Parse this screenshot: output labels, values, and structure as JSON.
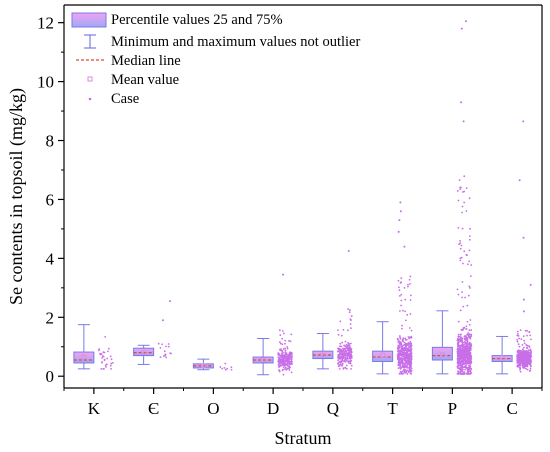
{
  "colors": {
    "box_fill_top": "#f2a3f2",
    "box_fill_bottom": "#9fa8f5",
    "box_stroke": "#7a7ae8",
    "whisker": "#7a7ae8",
    "median": "#e8433e",
    "mean": "#d98bd9",
    "case": "#c86ee8",
    "axis": "#000000"
  },
  "legend": {
    "box": "Percentile values 25 and 75%",
    "whisker": "Minimum and maximum values not outlier",
    "median": "Median line",
    "mean": "Mean value",
    "case": "Case"
  },
  "chart_data": {
    "type": "box",
    "xlabel": "Stratum",
    "ylabel": "Se contents in topsoil (mg/kg)",
    "ylim": [
      -0.4,
      12.6
    ],
    "yticks": [
      0,
      2,
      4,
      6,
      8,
      10,
      12
    ],
    "grid": false,
    "legend_position": "top-left",
    "categories": [
      "K",
      "Є",
      "O",
      "D",
      "Q",
      "T",
      "P",
      "C"
    ],
    "boxes": [
      {
        "category": "K",
        "whisker_low": 0.25,
        "q1": 0.45,
        "median": 0.55,
        "mean": 0.65,
        "q3": 0.82,
        "whisker_high": 1.75,
        "case_count": 30,
        "case_max": 1.75,
        "outliers": []
      },
      {
        "category": "Є",
        "whisker_low": 0.4,
        "q1": 0.7,
        "median": 0.8,
        "mean": 0.8,
        "q3": 0.95,
        "whisker_high": 1.05,
        "case_count": 15,
        "case_max": 1.2,
        "outliers": [
          1.9,
          2.55
        ]
      },
      {
        "category": "O",
        "whisker_low": 0.22,
        "q1": 0.28,
        "median": 0.35,
        "mean": 0.35,
        "q3": 0.42,
        "whisker_high": 0.58,
        "case_count": 8,
        "case_max": 0.6,
        "outliers": []
      },
      {
        "category": "D",
        "whisker_low": 0.05,
        "q1": 0.45,
        "median": 0.55,
        "mean": 0.55,
        "q3": 0.65,
        "whisker_high": 1.28,
        "case_count": 260,
        "case_max": 1.6,
        "outliers": [
          3.45
        ]
      },
      {
        "category": "Q",
        "whisker_low": 0.25,
        "q1": 0.6,
        "median": 0.72,
        "mean": 0.72,
        "q3": 0.85,
        "whisker_high": 1.45,
        "case_count": 240,
        "case_max": 2.3,
        "outliers": [
          4.25
        ]
      },
      {
        "category": "T",
        "whisker_low": 0.08,
        "q1": 0.5,
        "median": 0.65,
        "mean": 0.72,
        "q3": 0.85,
        "whisker_high": 1.85,
        "case_count": 460,
        "case_max": 3.5,
        "outliers": [
          4.4,
          4.9,
          5.3,
          5.6,
          5.9
        ]
      },
      {
        "category": "P",
        "whisker_low": 0.08,
        "q1": 0.55,
        "median": 0.7,
        "mean": 0.72,
        "q3": 0.98,
        "whisker_high": 2.22,
        "case_count": 700,
        "case_max": 6.8,
        "outliers": [
          8.65,
          9.3,
          11.8,
          12.05
        ]
      },
      {
        "category": "C",
        "whisker_low": 0.08,
        "q1": 0.5,
        "median": 0.6,
        "mean": 0.62,
        "q3": 0.7,
        "whisker_high": 1.35,
        "case_count": 420,
        "case_max": 1.6,
        "outliers": [
          2.2,
          2.6,
          3.1,
          4.7,
          6.65,
          8.65
        ]
      }
    ]
  }
}
